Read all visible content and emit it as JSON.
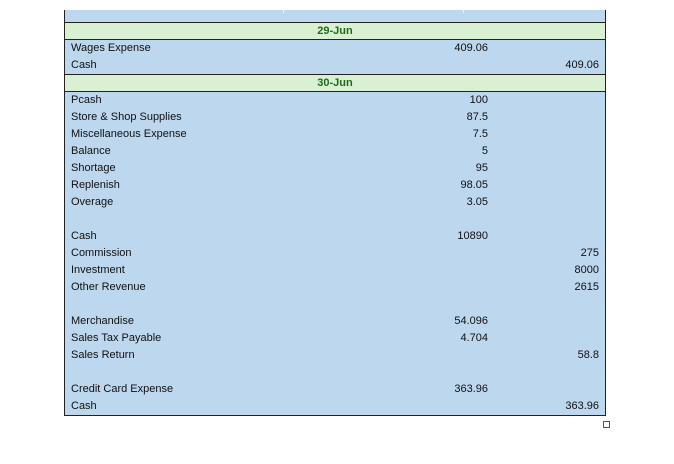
{
  "sections": [
    {
      "date": "29-Jun",
      "rows": [
        {
          "account": "Wages Expense",
          "debit": "409.06",
          "credit": ""
        },
        {
          "account": "Cash",
          "debit": "",
          "credit": "409.06"
        }
      ]
    },
    {
      "date": "30-Jun",
      "rows": [
        {
          "account": "Pcash",
          "debit": "100",
          "credit": ""
        },
        {
          "account": "Store & Shop Supplies",
          "debit": "87.5",
          "credit": ""
        },
        {
          "account": "Miscellaneous Expense",
          "debit": "7.5",
          "credit": ""
        },
        {
          "account": "Balance",
          "debit": "5",
          "credit": ""
        },
        {
          "account": "Shortage",
          "debit": "95",
          "credit": ""
        },
        {
          "account": "Replenish",
          "debit": "98.05",
          "credit": ""
        },
        {
          "account": "Overage",
          "debit": "3.05",
          "credit": ""
        },
        {
          "account": "",
          "debit": "",
          "credit": ""
        },
        {
          "account": "Cash",
          "debit": "10890",
          "credit": ""
        },
        {
          "account": "Commission",
          "debit": "",
          "credit": "275"
        },
        {
          "account": "Investment",
          "debit": "",
          "credit": "8000"
        },
        {
          "account": "Other Revenue",
          "debit": "",
          "credit": "2615"
        },
        {
          "account": "",
          "debit": "",
          "credit": ""
        },
        {
          "account": "Merchandise",
          "debit": "54.096",
          "credit": ""
        },
        {
          "account": "Sales Tax Payable",
          "debit": "4.704",
          "credit": ""
        },
        {
          "account": "Sales Return",
          "debit": "",
          "credit": "58.8"
        },
        {
          "account": "",
          "debit": "",
          "credit": ""
        },
        {
          "account": "Credit Card Expense",
          "debit": "363.96",
          "credit": ""
        },
        {
          "account": "Cash",
          "debit": "",
          "credit": "363.96"
        }
      ]
    }
  ]
}
